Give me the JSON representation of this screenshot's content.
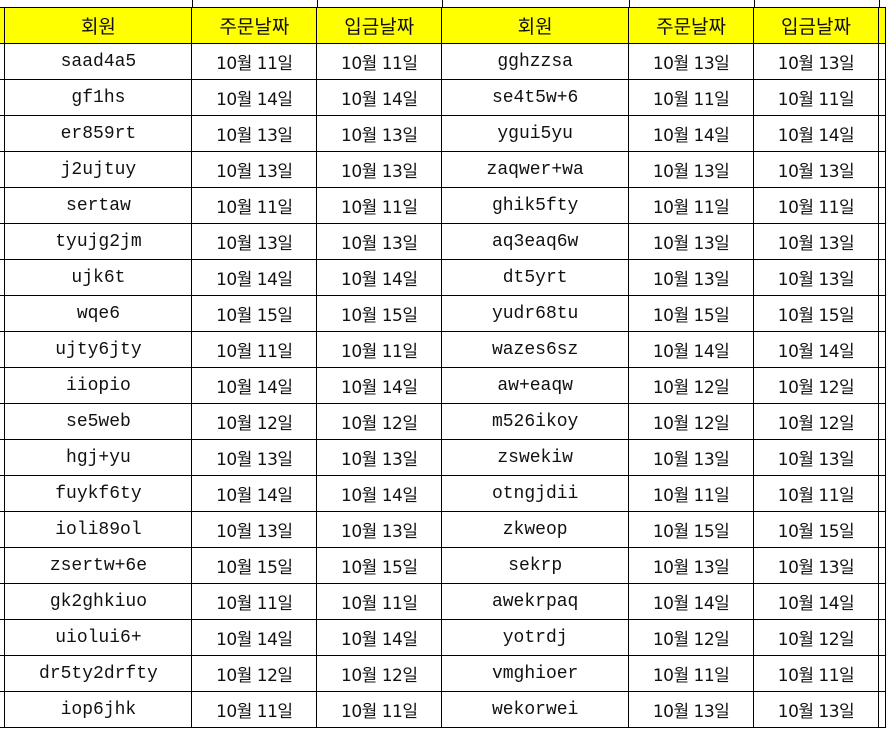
{
  "header_color": "#ffff00",
  "headers": [
    "회원",
    "주문날짜",
    "입금날짜",
    "회원",
    "주문날짜",
    "입금날짜"
  ],
  "rows": [
    [
      "saad4a5",
      "10월 11일",
      "10월 11일",
      "gghzzsa",
      "10월 13일",
      "10월 13일"
    ],
    [
      "gf1hs",
      "10월 14일",
      "10월 14일",
      "se4t5w+6",
      "10월 11일",
      "10월 11일"
    ],
    [
      "er859rt",
      "10월 13일",
      "10월 13일",
      "ygui5yu",
      "10월 14일",
      "10월 14일"
    ],
    [
      "j2ujtuy",
      "10월 13일",
      "10월 13일",
      "zaqwer+wa",
      "10월 13일",
      "10월 13일"
    ],
    [
      "sertaw",
      "10월 11일",
      "10월 11일",
      "ghik5fty",
      "10월 11일",
      "10월 11일"
    ],
    [
      "tyujg2jm",
      "10월 13일",
      "10월 13일",
      "aq3eaq6w",
      "10월 13일",
      "10월 13일"
    ],
    [
      "ujk6t",
      "10월 14일",
      "10월 14일",
      "dt5yrt",
      "10월 13일",
      "10월 13일"
    ],
    [
      "wqe6",
      "10월 15일",
      "10월 15일",
      "yudr68tu",
      "10월 15일",
      "10월 15일"
    ],
    [
      "ujty6jty",
      "10월 11일",
      "10월 11일",
      "wazes6sz",
      "10월 14일",
      "10월 14일"
    ],
    [
      "iiopio",
      "10월 14일",
      "10월 14일",
      "aw+eaqw",
      "10월 12일",
      "10월 12일"
    ],
    [
      "se5web",
      "10월 12일",
      "10월 12일",
      "m526ikoy",
      "10월 12일",
      "10월 12일"
    ],
    [
      "hgj+yu",
      "10월 13일",
      "10월 13일",
      "zswekiw",
      "10월 13일",
      "10월 13일"
    ],
    [
      "fuykf6ty",
      "10월 14일",
      "10월 14일",
      "otngjdii",
      "10월 11일",
      "10월 11일"
    ],
    [
      "ioli89ol",
      "10월 13일",
      "10월 13일",
      "zkweop",
      "10월 15일",
      "10월 15일"
    ],
    [
      "zsertw+6e",
      "10월 15일",
      "10월 15일",
      "sekrp",
      "10월 13일",
      "10월 13일"
    ],
    [
      "gk2ghkiuo",
      "10월 11일",
      "10월 11일",
      "awekrpaq",
      "10월 14일",
      "10월 14일"
    ],
    [
      "uiolui6+",
      "10월 14일",
      "10월 14일",
      "yotrdj",
      "10월 12일",
      "10월 12일"
    ],
    [
      "dr5ty2drfty",
      "10월 12일",
      "10월 12일",
      "vmghioer",
      "10월 11일",
      "10월 11일"
    ],
    [
      "iop6jhk",
      "10월 11일",
      "10월 11일",
      "wekorwei",
      "10월 13일",
      "10월 13일"
    ]
  ]
}
